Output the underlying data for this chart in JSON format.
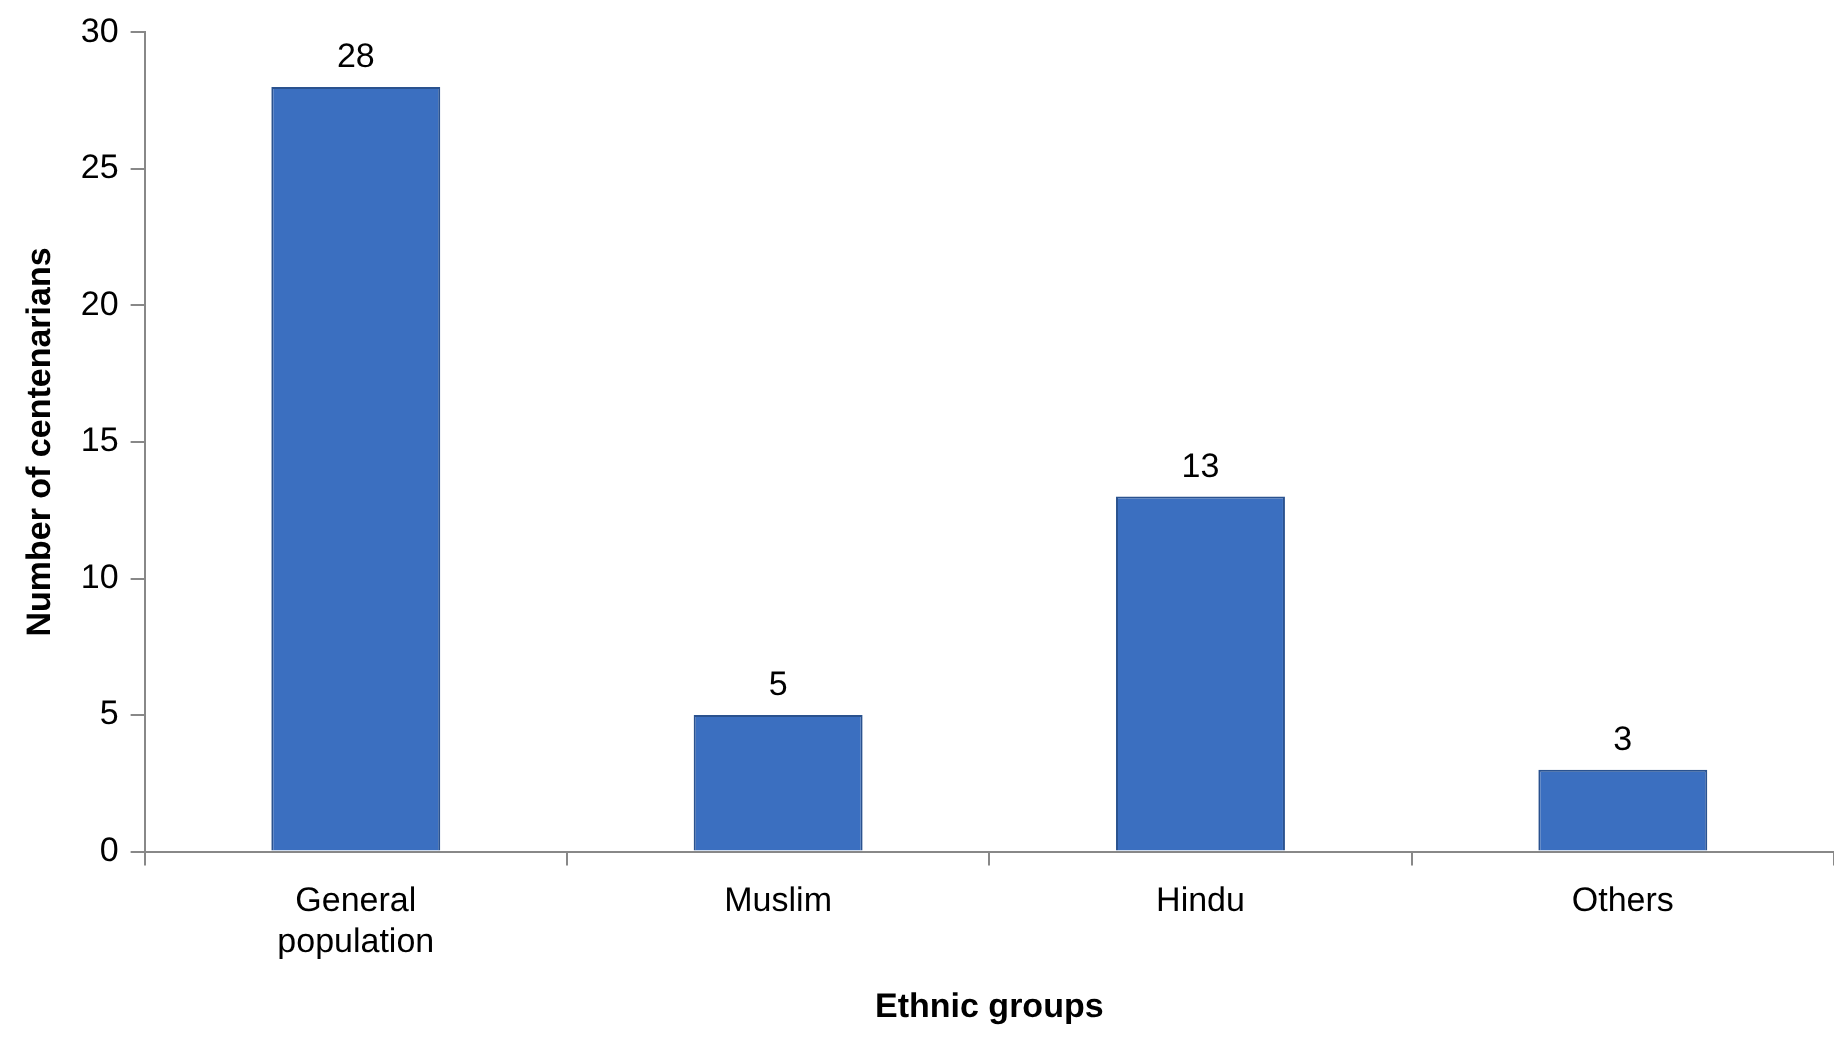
{
  "chart_data": {
    "type": "bar",
    "xlabel": "Ethnic groups",
    "ylabel": "Number of centenarians",
    "categories": [
      "General population",
      "Muslim",
      "Hindu",
      "Others"
    ],
    "values": [
      28,
      5,
      13,
      3
    ],
    "color": "#3b6fc0",
    "ylim": [
      0,
      30
    ],
    "yticks": [
      0,
      5,
      10,
      15,
      20,
      25,
      30
    ],
    "grid": false,
    "legend": false,
    "data_labels": true
  }
}
